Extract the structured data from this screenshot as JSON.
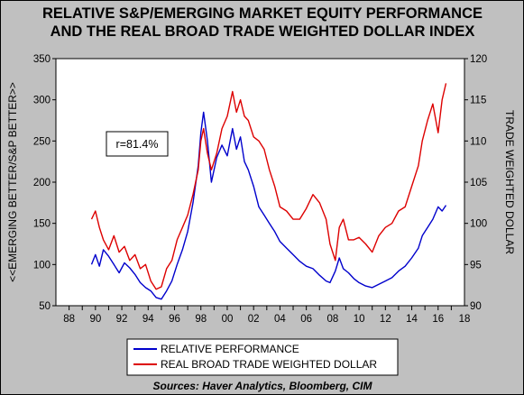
{
  "chart_data": {
    "type": "line",
    "title": "RELATIVE S&P/EMERGING MARKET EQUITY PERFORMANCE",
    "subtitle": "AND THE REAL BROAD TRADE WEIGHTED DOLLAR INDEX",
    "ylabel_left": "<<EMERGING BETTER/S&P BETTER>>",
    "ylabel_right": "TRADE WEIGHTED DOLLAR",
    "xlabel": "",
    "x_ticks": [
      "88",
      "90",
      "92",
      "94",
      "96",
      "98",
      "00",
      "02",
      "04",
      "06",
      "08",
      "10",
      "12",
      "14",
      "16",
      "18"
    ],
    "y_left_ticks": [
      "50",
      "100",
      "150",
      "200",
      "250",
      "300",
      "350"
    ],
    "y_right_ticks": [
      "90",
      "95",
      "100",
      "105",
      "110",
      "115",
      "120"
    ],
    "xlim": [
      1987,
      2018
    ],
    "ylim_left": [
      50,
      350
    ],
    "ylim_right": [
      90,
      120
    ],
    "grid": false,
    "annotation": "r=81.4%",
    "source": "Sources: Haver Analytics, Bloomberg, CIM",
    "series": [
      {
        "name": "RELATIVE PERFORMANCE",
        "axis": "left",
        "color": "#0000cc",
        "x": [
          1989.7,
          1990.0,
          1990.3,
          1990.6,
          1991.0,
          1991.4,
          1991.8,
          1992.2,
          1992.6,
          1993.0,
          1993.4,
          1993.8,
          1994.2,
          1994.6,
          1995.0,
          1995.4,
          1995.8,
          1996.2,
          1996.6,
          1997.0,
          1997.4,
          1997.8,
          1998.0,
          1998.2,
          1998.5,
          1998.8,
          1999.2,
          1999.6,
          2000.0,
          2000.4,
          2000.7,
          2001.0,
          2001.3,
          2001.6,
          2002.0,
          2002.4,
          2002.8,
          2003.2,
          2003.6,
          2004.0,
          2004.5,
          2005.0,
          2005.5,
          2006.0,
          2006.5,
          2007.0,
          2007.5,
          2007.8,
          2008.2,
          2008.5,
          2008.8,
          2009.2,
          2009.6,
          2010.0,
          2010.5,
          2011.0,
          2011.5,
          2012.0,
          2012.5,
          2013.0,
          2013.5,
          2014.0,
          2014.5,
          2014.8,
          2015.2,
          2015.6,
          2016.0,
          2016.3,
          2016.6
        ],
        "values": [
          100,
          112,
          98,
          118,
          110,
          100,
          90,
          102,
          96,
          88,
          78,
          72,
          68,
          60,
          58,
          68,
          80,
          100,
          118,
          140,
          175,
          220,
          260,
          285,
          250,
          200,
          230,
          245,
          232,
          265,
          240,
          255,
          225,
          215,
          195,
          170,
          160,
          150,
          140,
          128,
          120,
          112,
          104,
          98,
          95,
          87,
          80,
          78,
          92,
          108,
          95,
          90,
          83,
          78,
          74,
          72,
          76,
          80,
          84,
          92,
          98,
          108,
          120,
          135,
          145,
          155,
          170,
          165,
          172
        ]
      },
      {
        "name": "REAL BROAD TRADE WEIGHTED DOLLAR",
        "axis": "right",
        "color": "#dd0000",
        "x": [
          1989.7,
          1990.0,
          1990.3,
          1990.6,
          1991.0,
          1991.4,
          1991.8,
          1992.2,
          1992.6,
          1993.0,
          1993.4,
          1993.8,
          1994.2,
          1994.6,
          1995.0,
          1995.4,
          1995.8,
          1996.2,
          1996.6,
          1997.0,
          1997.4,
          1997.8,
          1998.0,
          1998.2,
          1998.5,
          1998.8,
          1999.2,
          1999.6,
          2000.0,
          2000.4,
          2000.7,
          2001.0,
          2001.3,
          2001.6,
          2002.0,
          2002.4,
          2002.8,
          2003.2,
          2003.6,
          2004.0,
          2004.5,
          2005.0,
          2005.5,
          2006.0,
          2006.5,
          2007.0,
          2007.5,
          2007.8,
          2008.2,
          2008.5,
          2008.8,
          2009.2,
          2009.6,
          2010.0,
          2010.5,
          2011.0,
          2011.5,
          2012.0,
          2012.5,
          2013.0,
          2013.5,
          2014.0,
          2014.5,
          2014.8,
          2015.2,
          2015.6,
          2016.0,
          2016.3,
          2016.6
        ],
        "values": [
          100.5,
          101.5,
          99.5,
          98.0,
          96.8,
          98.5,
          96.5,
          97.2,
          95.5,
          96.2,
          94.5,
          95.0,
          93.0,
          92.0,
          92.3,
          94.5,
          95.5,
          98.0,
          99.5,
          101.0,
          103.5,
          106.5,
          110.0,
          111.5,
          108.5,
          106.5,
          108.5,
          111.5,
          113.0,
          116.0,
          113.5,
          115.0,
          113.0,
          112.5,
          110.5,
          110.0,
          109.0,
          106.5,
          104.5,
          102.0,
          101.5,
          100.5,
          100.5,
          101.8,
          103.5,
          102.5,
          100.5,
          97.5,
          95.5,
          99.5,
          100.5,
          98.0,
          98.0,
          98.3,
          97.5,
          96.5,
          98.5,
          99.5,
          100.0,
          101.5,
          102.0,
          104.5,
          107.0,
          110.0,
          112.5,
          114.5,
          111.0,
          115.0,
          117.0
        ]
      }
    ]
  }
}
